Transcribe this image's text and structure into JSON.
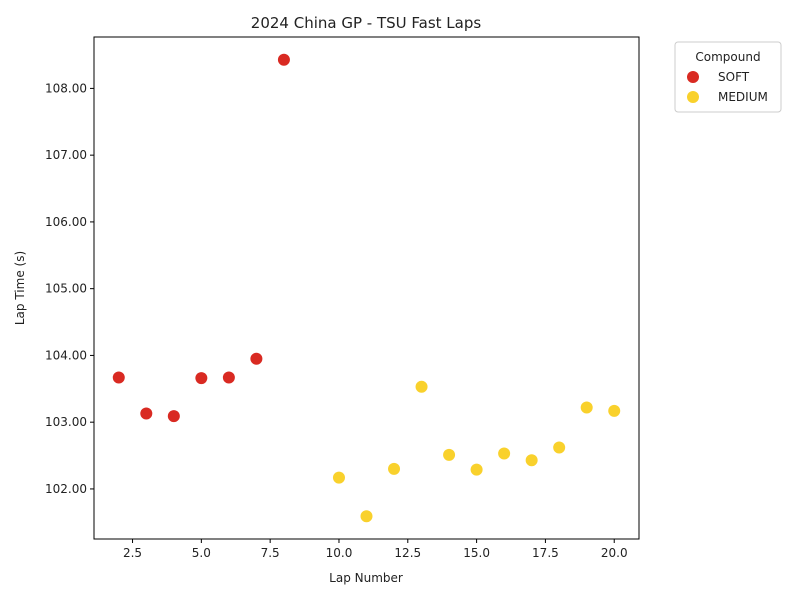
{
  "chart_data": {
    "type": "scatter",
    "title": "2024 China GP - TSU Fast Laps",
    "xlabel": "Lap Number",
    "ylabel": "Lap Time (s)",
    "xlim": [
      1.1,
      20.9
    ],
    "ylim": [
      101.25,
      108.77
    ],
    "xticks": [
      2.5,
      5.0,
      7.5,
      10.0,
      12.5,
      15.0,
      17.5,
      20.0
    ],
    "xtick_labels": [
      "2.5",
      "5.0",
      "7.5",
      "10.0",
      "12.5",
      "15.0",
      "17.5",
      "20.0"
    ],
    "yticks": [
      102,
      103,
      104,
      105,
      106,
      107,
      108
    ],
    "ytick_labels": [
      "102.00",
      "103.00",
      "104.00",
      "105.00",
      "106.00",
      "107.00",
      "108.00"
    ],
    "grid": false,
    "legend": {
      "title": "Compound",
      "placement": "outside-top-right"
    },
    "series": [
      {
        "name": "SOFT",
        "color": "#d92a22",
        "points": [
          {
            "x": 2,
            "y": 103.67
          },
          {
            "x": 3,
            "y": 103.13
          },
          {
            "x": 4,
            "y": 103.09
          },
          {
            "x": 5,
            "y": 103.66
          },
          {
            "x": 6,
            "y": 103.67
          },
          {
            "x": 7,
            "y": 103.95
          },
          {
            "x": 8,
            "y": 108.43
          }
        ]
      },
      {
        "name": "MEDIUM",
        "color": "#f9d12c",
        "points": [
          {
            "x": 10,
            "y": 102.17
          },
          {
            "x": 11,
            "y": 101.59
          },
          {
            "x": 12,
            "y": 102.3
          },
          {
            "x": 13,
            "y": 103.53
          },
          {
            "x": 14,
            "y": 102.51
          },
          {
            "x": 15,
            "y": 102.29
          },
          {
            "x": 16,
            "y": 102.53
          },
          {
            "x": 17,
            "y": 102.43
          },
          {
            "x": 18,
            "y": 102.62
          },
          {
            "x": 19,
            "y": 103.22
          },
          {
            "x": 20,
            "y": 103.17
          }
        ]
      }
    ]
  }
}
